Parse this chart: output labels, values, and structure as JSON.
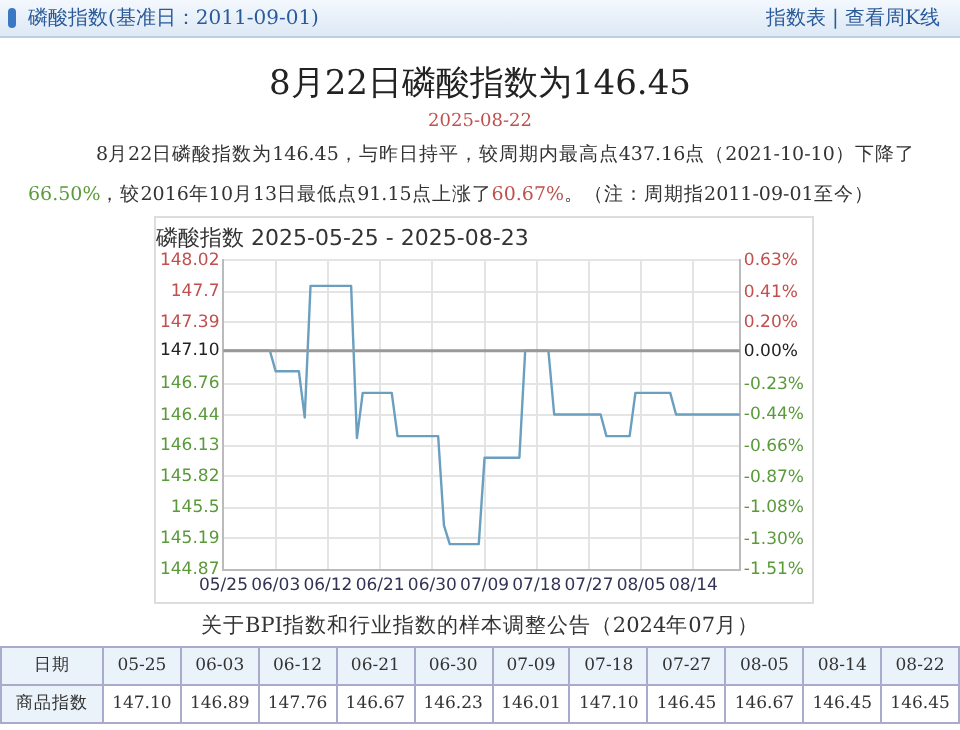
{
  "chart_data": {
    "type": "line",
    "title": "磷酸指数 2025-05-25 - 2025-08-23",
    "x": [
      "2025-05-25",
      "2025-06-02",
      "2025-06-03",
      "2025-06-07",
      "2025-06-08",
      "2025-06-09",
      "2025-06-12",
      "2025-06-16",
      "2025-06-17",
      "2025-06-18",
      "2025-06-21",
      "2025-06-23",
      "2025-06-24",
      "2025-06-30",
      "2025-07-01",
      "2025-07-02",
      "2025-07-03",
      "2025-07-08",
      "2025-07-09",
      "2025-07-15",
      "2025-07-16",
      "2025-07-18",
      "2025-07-20",
      "2025-07-21",
      "2025-07-27",
      "2025-07-29",
      "2025-07-30",
      "2025-08-03",
      "2025-08-04",
      "2025-08-05",
      "2025-08-10",
      "2025-08-11",
      "2025-08-14",
      "2025-08-22"
    ],
    "series": [
      {
        "color": "#6a9fc0",
        "values": [
          147.1,
          147.1,
          146.89,
          146.89,
          146.42,
          147.76,
          147.76,
          147.76,
          146.21,
          146.67,
          146.67,
          146.67,
          146.23,
          146.23,
          146.23,
          145.32,
          145.13,
          145.13,
          146.01,
          146.01,
          147.1,
          147.1,
          147.1,
          146.45,
          146.45,
          146.45,
          146.23,
          146.23,
          146.67,
          146.67,
          146.67,
          146.45,
          146.45,
          146.45
        ]
      }
    ],
    "xlim": [
      "2025-05-25",
      "2025-08-22"
    ],
    "xticks": [
      {
        "value": "2025-05-25",
        "label": "05/25"
      },
      {
        "value": "2025-06-03",
        "label": "06/03"
      },
      {
        "value": "2025-06-12",
        "label": "06/12"
      },
      {
        "value": "2025-06-21",
        "label": "06/21"
      },
      {
        "value": "2025-06-30",
        "label": "06/30"
      },
      {
        "value": "2025-07-09",
        "label": "07/09"
      },
      {
        "value": "2025-07-18",
        "label": "07/18"
      },
      {
        "value": "2025-07-27",
        "label": "07/27"
      },
      {
        "value": "2025-08-05",
        "label": "08/05"
      },
      {
        "value": "2025-08-14",
        "label": "08/14"
      }
    ],
    "ylim": [
      144.87,
      148.02
    ],
    "yticks": [
      144.87,
      145.19,
      145.5,
      145.82,
      146.13,
      146.44,
      146.76,
      {
        "value": 147.1,
        "label": "147.10"
      },
      147.39,
      147.7,
      148.02
    ],
    "y2lim": [
      -1.51,
      0.63
    ],
    "y2ticks": [
      {
        "value": -1.51,
        "label": "-1.51%"
      },
      {
        "value": -1.3,
        "label": "-1.30%"
      },
      {
        "value": -1.08,
        "label": "-1.08%"
      },
      {
        "value": -0.87,
        "label": "-0.87%"
      },
      {
        "value": -0.66,
        "label": "-0.66%"
      },
      {
        "value": -0.44,
        "label": "-0.44%"
      },
      {
        "value": -0.23,
        "label": "-0.23%"
      },
      {
        "value": 0,
        "label": "0.00%"
      },
      {
        "value": 0.2,
        "label": "0.20%"
      },
      {
        "value": 0.41,
        "label": "0.41%"
      },
      {
        "value": 0.63,
        "label": "0.63%"
      }
    ],
    "ref_lines": [
      {
        "axis": "y",
        "value": 147.1,
        "color": "#999999"
      }
    ],
    "grid": true,
    "marker": "none",
    "line_style": "solid",
    "annotations": [
      "磷酸指数(基准日：2011-09-01)",
      "指数表 | 查看周K线",
      "8月22日磷酸指数为146.45",
      "2025-08-22",
      "8月22日磷酸指数为146.45，与昨日持平，较周期内最高点437.16点（2021-10-10）下降了",
      "66.50%",
      "，较2016年10月13日最低点91.15点上涨了",
      "60.67%",
      "。（注：周期指2011-09-01至今）",
      "关于BPI指数和行业指数的样本调整公告（2024年07月）",
      "日期",
      "05-25",
      "06-03",
      "06-12",
      "06-21",
      "06-30",
      "07-09",
      "07-18",
      "07-27",
      "08-05",
      "08-14",
      "08-22",
      "商品指数",
      "147.10",
      "146.89",
      "147.76",
      "146.67",
      "146.23",
      "146.01",
      "147.10",
      "146.45",
      "146.67",
      "146.45",
      "146.45"
    ]
  }
}
